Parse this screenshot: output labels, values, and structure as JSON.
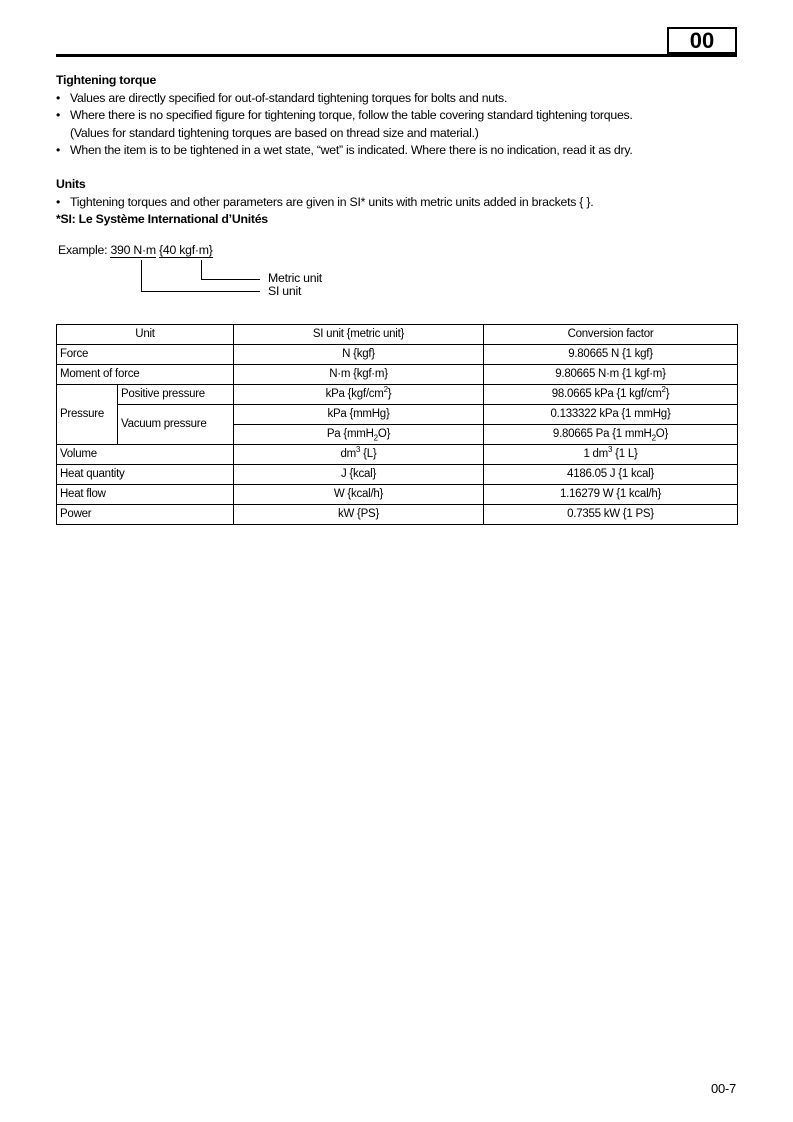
{
  "header": {
    "section": "00"
  },
  "torque": {
    "title": "Tightening torque",
    "bullets": [
      "Values are directly specified for out-of-standard tightening torques for bolts and nuts.",
      "Where there is no specified figure for tightening torque, follow the table covering standard tightening torques.",
      "When the item is to be tightened in a wet state, “wet” is indicated. Where there is no indication, read it as dry."
    ],
    "note": "(Values for standard tightening torques are based on thread size and material.)"
  },
  "units": {
    "title": "Units",
    "bullet": "Tightening torques and other parameters are given in SI* units with metric units added in brackets { }.",
    "si_note": "*SI: Le Système International d’Unités"
  },
  "example": {
    "label": "Example:",
    "si_value": "390 N·m",
    "metric_value": "{40 kgf·m}",
    "metric_caption": "Metric unit",
    "si_caption": "SI unit"
  },
  "table": {
    "headers": [
      "Unit",
      "SI unit {metric unit}",
      "Conversion factor"
    ],
    "rows": {
      "force": {
        "unit": "Force",
        "si": "N {kgf}",
        "factor": "9.80665 N {1 kgf}"
      },
      "moment": {
        "unit": "Moment of force",
        "si": "N·m {kgf·m}",
        "factor": "9.80665 N·m {1 kgf·m}"
      },
      "pressure": {
        "unit": "Pressure",
        "positive": "Positive pressure",
        "vacuum": "Vacuum pressure",
        "pos_si": [
          "kPa {kgf/cm",
          "2",
          "}"
        ],
        "pos_factor": [
          "98.0665 kPa {1 kgf/cm",
          "2",
          "}"
        ],
        "vac1_si": "kPa {mmHg}",
        "vac1_factor": "0.133322 kPa {1 mmHg}",
        "vac2_si": [
          "Pa {mmH",
          "2",
          "O}"
        ],
        "vac2_factor": [
          "9.80665 Pa {1 mmH",
          "2",
          "O}"
        ]
      },
      "volume": {
        "unit": "Volume",
        "si": [
          "dm",
          "3",
          " {L}"
        ],
        "factor": [
          "1 dm",
          "3",
          " {1 L}"
        ]
      },
      "heat_quantity": {
        "unit": "Heat quantity",
        "si": "J {kcal}",
        "factor": "4186.05 J {1 kcal}"
      },
      "heat_flow": {
        "unit": "Heat flow",
        "si": "W {kcal/h}",
        "factor": "1.16279 W {1 kcal/h}"
      },
      "power": {
        "unit": "Power",
        "si": "kW {PS}",
        "factor": "0.7355 kW {1 PS}"
      }
    }
  },
  "footer": {
    "page": "00-7"
  }
}
